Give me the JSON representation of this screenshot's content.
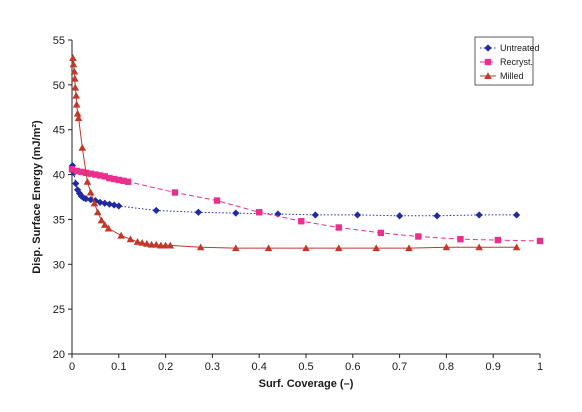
{
  "chart_data": {
    "type": "scatter",
    "title": "",
    "xlabel": "Surf. Coverage (–)",
    "ylabel": "Disp. Surface Energy (mJ/m²)",
    "xlim": [
      0,
      1
    ],
    "ylim": [
      20,
      55
    ],
    "x_ticks": [
      "0",
      "0.1",
      "0.2",
      "0.3",
      "0.4",
      "0.5",
      "0.6",
      "0.7",
      "0.8",
      "0.9",
      "1"
    ],
    "y_ticks": [
      "20",
      "25",
      "30",
      "35",
      "40",
      "45",
      "50",
      "55"
    ],
    "grid": false,
    "legend_position": "top-right",
    "series": [
      {
        "name": "Untreated",
        "color": "#1f2aa3",
        "marker": "diamond",
        "line": "dotted",
        "points": [
          [
            0.001,
            41.0
          ],
          [
            0.004,
            40.2
          ],
          [
            0.008,
            39.0
          ],
          [
            0.012,
            38.3
          ],
          [
            0.016,
            37.9
          ],
          [
            0.02,
            37.6
          ],
          [
            0.025,
            37.4
          ],
          [
            0.03,
            37.3
          ],
          [
            0.04,
            37.2
          ],
          [
            0.05,
            37.1
          ],
          [
            0.06,
            36.9
          ],
          [
            0.07,
            36.8
          ],
          [
            0.08,
            36.7
          ],
          [
            0.09,
            36.6
          ],
          [
            0.1,
            36.5
          ],
          [
            0.18,
            36.0
          ],
          [
            0.27,
            35.8
          ],
          [
            0.35,
            35.7
          ],
          [
            0.44,
            35.6
          ],
          [
            0.52,
            35.5
          ],
          [
            0.61,
            35.5
          ],
          [
            0.7,
            35.4
          ],
          [
            0.78,
            35.4
          ],
          [
            0.87,
            35.5
          ],
          [
            0.95,
            35.5
          ]
        ]
      },
      {
        "name": "Recryst.",
        "color": "#e8318f",
        "marker": "square",
        "line": "dashed",
        "points": [
          [
            0.0,
            40.6
          ],
          [
            0.01,
            40.4
          ],
          [
            0.02,
            40.3
          ],
          [
            0.03,
            40.2
          ],
          [
            0.04,
            40.1
          ],
          [
            0.05,
            40.0
          ],
          [
            0.06,
            39.9
          ],
          [
            0.07,
            39.8
          ],
          [
            0.08,
            39.6
          ],
          [
            0.09,
            39.5
          ],
          [
            0.1,
            39.4
          ],
          [
            0.11,
            39.3
          ],
          [
            0.12,
            39.2
          ],
          [
            0.22,
            38.0
          ],
          [
            0.31,
            37.1
          ],
          [
            0.4,
            35.8
          ],
          [
            0.49,
            34.8
          ],
          [
            0.57,
            34.1
          ],
          [
            0.66,
            33.5
          ],
          [
            0.74,
            33.1
          ],
          [
            0.83,
            32.8
          ],
          [
            0.91,
            32.7
          ],
          [
            1.0,
            32.6
          ]
        ]
      },
      {
        "name": "Milled",
        "color": "#c0392b",
        "marker": "triangle",
        "line": "solid",
        "points": [
          [
            0.002,
            53.0
          ],
          [
            0.003,
            52.3
          ],
          [
            0.005,
            51.5
          ],
          [
            0.006,
            50.7
          ],
          [
            0.007,
            49.7
          ],
          [
            0.009,
            48.8
          ],
          [
            0.01,
            47.8
          ],
          [
            0.012,
            46.8
          ],
          [
            0.014,
            46.3
          ],
          [
            0.022,
            43.0
          ],
          [
            0.033,
            39.2
          ],
          [
            0.04,
            38.0
          ],
          [
            0.048,
            36.8
          ],
          [
            0.055,
            35.8
          ],
          [
            0.063,
            34.9
          ],
          [
            0.07,
            34.4
          ],
          [
            0.078,
            34.0
          ],
          [
            0.105,
            33.2
          ],
          [
            0.125,
            32.8
          ],
          [
            0.14,
            32.5
          ],
          [
            0.15,
            32.4
          ],
          [
            0.16,
            32.3
          ],
          [
            0.17,
            32.2
          ],
          [
            0.18,
            32.2
          ],
          [
            0.19,
            32.1
          ],
          [
            0.2,
            32.1
          ],
          [
            0.21,
            32.1
          ],
          [
            0.275,
            31.9
          ],
          [
            0.35,
            31.8
          ],
          [
            0.42,
            31.8
          ],
          [
            0.5,
            31.8
          ],
          [
            0.57,
            31.8
          ],
          [
            0.65,
            31.8
          ],
          [
            0.72,
            31.8
          ],
          [
            0.8,
            31.9
          ],
          [
            0.87,
            31.9
          ],
          [
            0.95,
            31.9
          ]
        ]
      }
    ]
  }
}
